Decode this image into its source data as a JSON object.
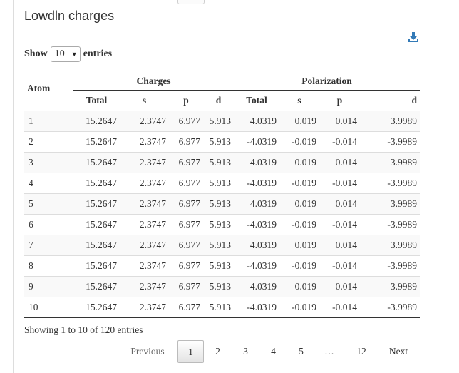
{
  "title": "Lowdln charges",
  "download_icon": "download-icon",
  "length_menu": {
    "show_label": "Show",
    "selected": "10",
    "entries_label": "entries"
  },
  "table": {
    "atom_header": "Atom",
    "groups": [
      "Charges",
      "Polarization"
    ],
    "columns": [
      "Total",
      "s",
      "p",
      "d",
      "Total",
      "s",
      "p",
      "d"
    ],
    "rows": [
      [
        "1",
        "15.2647",
        "2.3747",
        "6.977",
        "5.913",
        "4.0319",
        "0.019",
        "0.014",
        "3.9989"
      ],
      [
        "2",
        "15.2647",
        "2.3747",
        "6.977",
        "5.913",
        "-4.0319",
        "-0.019",
        "-0.014",
        "-3.9989"
      ],
      [
        "3",
        "15.2647",
        "2.3747",
        "6.977",
        "5.913",
        "4.0319",
        "0.019",
        "0.014",
        "3.9989"
      ],
      [
        "4",
        "15.2647",
        "2.3747",
        "6.977",
        "5.913",
        "-4.0319",
        "-0.019",
        "-0.014",
        "-3.9989"
      ],
      [
        "5",
        "15.2647",
        "2.3747",
        "6.977",
        "5.913",
        "4.0319",
        "0.019",
        "0.014",
        "3.9989"
      ],
      [
        "6",
        "15.2647",
        "2.3747",
        "6.977",
        "5.913",
        "-4.0319",
        "-0.019",
        "-0.014",
        "-3.9989"
      ],
      [
        "7",
        "15.2647",
        "2.3747",
        "6.977",
        "5.913",
        "4.0319",
        "0.019",
        "0.014",
        "3.9989"
      ],
      [
        "8",
        "15.2647",
        "2.3747",
        "6.977",
        "5.913",
        "-4.0319",
        "-0.019",
        "-0.014",
        "-3.9989"
      ],
      [
        "9",
        "15.2647",
        "2.3747",
        "6.977",
        "5.913",
        "4.0319",
        "0.019",
        "0.014",
        "3.9989"
      ],
      [
        "10",
        "15.2647",
        "2.3747",
        "6.977",
        "5.913",
        "-4.0319",
        "-0.019",
        "-0.014",
        "-3.9989"
      ]
    ]
  },
  "info": "Showing 1 to 10 of 120 entries",
  "pagination": {
    "previous": "Previous",
    "next": "Next",
    "current": "1",
    "pages": [
      "1",
      "2",
      "3",
      "4",
      "5",
      "…",
      "12"
    ]
  }
}
